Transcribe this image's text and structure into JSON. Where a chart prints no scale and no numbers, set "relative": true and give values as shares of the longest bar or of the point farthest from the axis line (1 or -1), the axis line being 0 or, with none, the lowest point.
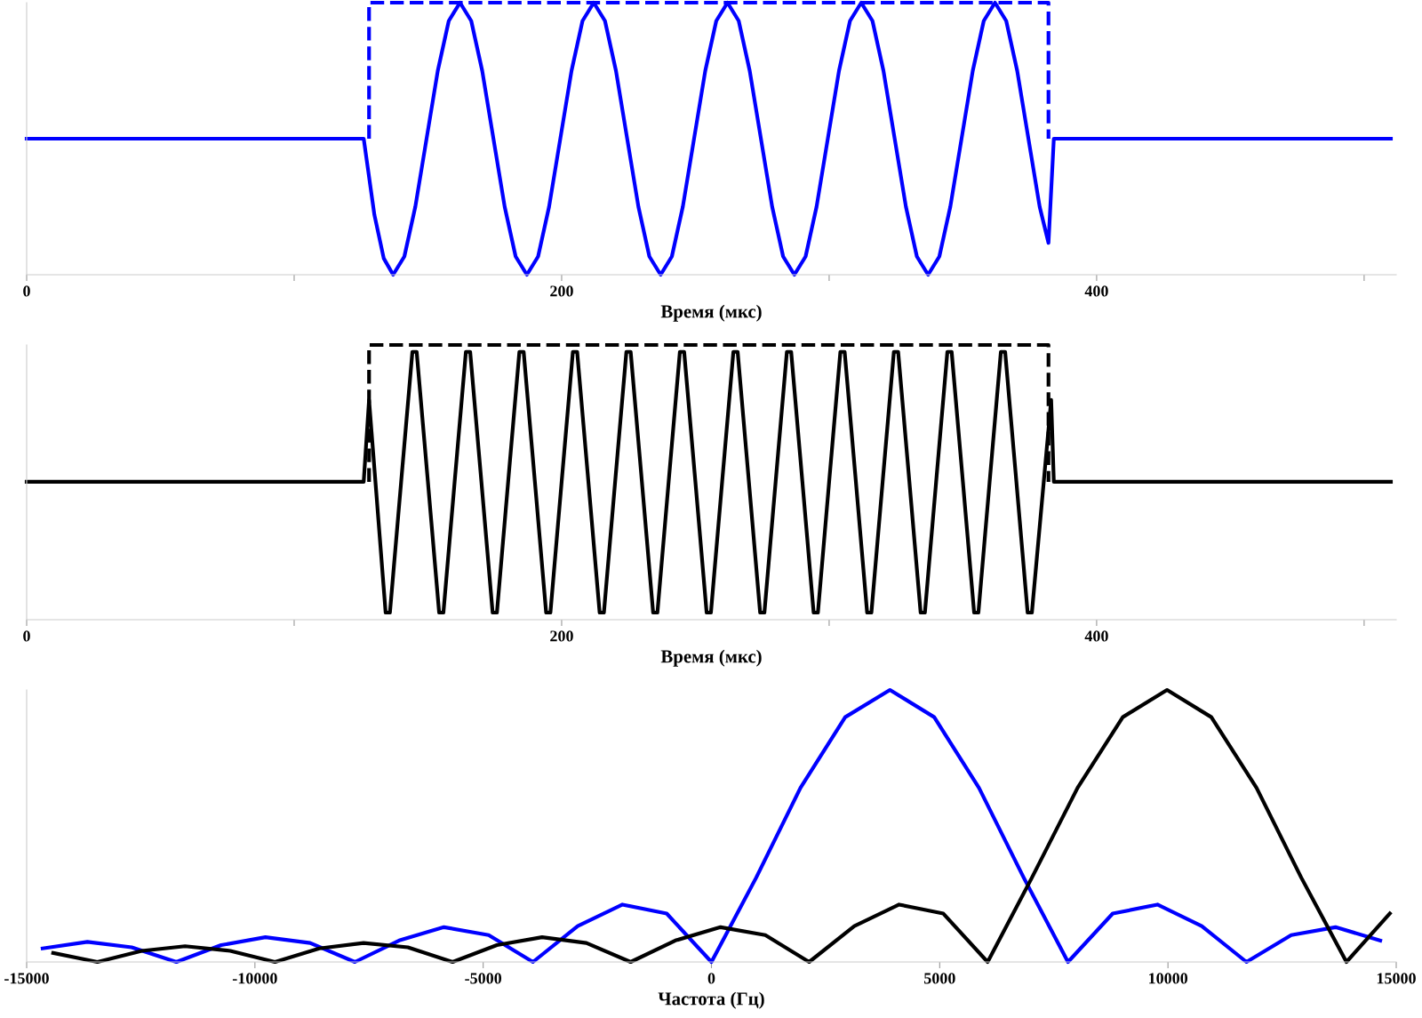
{
  "chart_data": [
    {
      "type": "line",
      "relative": true,
      "xlabel": "Время (мкс)",
      "xlim": [
        0,
        512
      ],
      "xticks": [
        0,
        {
          "value": 100,
          "label": null
        },
        200,
        {
          "value": 300,
          "label": null
        },
        400,
        {
          "value": 500,
          "label": null
        }
      ],
      "grid": false,
      "legend": false,
      "series": [
        {
          "color": "#0000ff",
          "line_style": "solid",
          "x": [
            0,
            126,
            130,
            133.5,
            137,
            141.2,
            145.3,
            149.5,
            153.7,
            157.8,
            162,
            166.2,
            170.3,
            174.5,
            178.7,
            182.8,
            187,
            191.2,
            195.3,
            199.5,
            203.7,
            207.8,
            212,
            216.2,
            220.3,
            224.5,
            228.7,
            232.8,
            237,
            241.2,
            245.3,
            249.5,
            253.7,
            257.8,
            262,
            266.2,
            270.3,
            274.5,
            278.7,
            282.8,
            287,
            291.2,
            295.3,
            299.5,
            303.7,
            307.8,
            312,
            316.2,
            320.3,
            324.5,
            328.7,
            332.8,
            337,
            341.2,
            345.3,
            349.5,
            353.7,
            357.8,
            362,
            366.2,
            370.3,
            374.5,
            378.7,
            382,
            384,
            510
          ],
          "values": [
            0.5,
            0.5,
            0.22,
            0.06,
            0,
            0.067,
            0.25,
            0.5,
            0.75,
            0.933,
            1,
            0.933,
            0.75,
            0.5,
            0.25,
            0.067,
            0,
            0.067,
            0.25,
            0.5,
            0.75,
            0.933,
            1,
            0.933,
            0.75,
            0.5,
            0.25,
            0.067,
            0,
            0.067,
            0.25,
            0.5,
            0.75,
            0.933,
            1,
            0.933,
            0.75,
            0.5,
            0.25,
            0.067,
            0,
            0.067,
            0.25,
            0.5,
            0.75,
            0.933,
            1,
            0.933,
            0.75,
            0.5,
            0.25,
            0.067,
            0,
            0.067,
            0.25,
            0.5,
            0.75,
            0.933,
            1,
            0.933,
            0.75,
            0.5,
            0.25,
            0.117,
            0.5,
            0.5
          ]
        },
        {
          "color": "#0000ff",
          "line_style": "dashed",
          "x": [
            128,
            128,
            382,
            382
          ],
          "values": [
            0.5,
            1,
            1,
            0.5
          ]
        }
      ]
    },
    {
      "type": "line",
      "relative": true,
      "xlabel": "Время (мкс)",
      "xlim": [
        0,
        512
      ],
      "xticks": [
        0,
        {
          "value": 100,
          "label": null
        },
        200,
        {
          "value": 300,
          "label": null
        },
        400,
        {
          "value": 500,
          "label": null
        }
      ],
      "grid": false,
      "legend": false,
      "series": [
        {
          "color": "#000000",
          "line_style": "solid",
          "x": [
            0,
            126,
            128,
            134.2,
            135.8,
            140,
            144.2,
            145.8,
            150,
            154.2,
            155.8,
            160,
            164.2,
            165.8,
            170,
            174.2,
            175.8,
            180,
            184.2,
            185.8,
            190,
            194.2,
            195.8,
            200,
            204.2,
            205.8,
            210,
            214.2,
            215.8,
            220,
            224.2,
            225.8,
            230,
            234.2,
            235.8,
            240,
            244.2,
            245.8,
            250,
            254.2,
            255.8,
            260,
            264.2,
            265.8,
            270,
            274.2,
            275.8,
            280,
            284.2,
            285.8,
            290,
            294.2,
            295.8,
            300,
            304.2,
            305.8,
            310,
            314.2,
            315.8,
            320,
            324.2,
            325.8,
            330,
            334.2,
            335.8,
            340,
            344.2,
            345.8,
            350,
            354.2,
            355.8,
            360,
            364.2,
            365.8,
            370,
            374.2,
            375.8,
            383,
            384,
            510
          ],
          "values": [
            0.502,
            0.502,
            0.8,
            0.026,
            0.026,
            0.502,
            0.975,
            0.975,
            0.502,
            0.026,
            0.026,
            0.502,
            0.975,
            0.975,
            0.502,
            0.026,
            0.026,
            0.502,
            0.975,
            0.975,
            0.502,
            0.026,
            0.026,
            0.502,
            0.975,
            0.975,
            0.502,
            0.026,
            0.026,
            0.502,
            0.975,
            0.975,
            0.502,
            0.026,
            0.026,
            0.502,
            0.975,
            0.975,
            0.502,
            0.026,
            0.026,
            0.502,
            0.975,
            0.975,
            0.502,
            0.026,
            0.026,
            0.502,
            0.975,
            0.975,
            0.502,
            0.026,
            0.026,
            0.502,
            0.975,
            0.975,
            0.502,
            0.026,
            0.026,
            0.502,
            0.975,
            0.975,
            0.502,
            0.026,
            0.026,
            0.502,
            0.975,
            0.975,
            0.502,
            0.026,
            0.026,
            0.502,
            0.975,
            0.975,
            0.502,
            0.026,
            0.026,
            0.8,
            0.502,
            0.502
          ]
        },
        {
          "color": "#000000",
          "line_style": "dashed",
          "x": [
            128,
            128,
            382,
            382
          ],
          "values": [
            0.502,
            1,
            1,
            0.502
          ]
        }
      ]
    },
    {
      "type": "line",
      "relative": true,
      "xlabel": "Частота (Гц)",
      "xlim": [
        -15000,
        15000
      ],
      "xticks": [
        -15000,
        -10000,
        -5000,
        0,
        5000,
        10000,
        15000
      ],
      "grid": false,
      "legend": false,
      "series": [
        {
          "color": "#0000ff",
          "line_style": "solid",
          "x": [
            -14650,
            -13670,
            -12700,
            -11720,
            -10740,
            -9770,
            -8790,
            -7810,
            -6840,
            -5860,
            -4880,
            -3910,
            -2930,
            -1950,
            -980,
            0,
            980,
            1950,
            2930,
            3910,
            4880,
            5860,
            6840,
            7810,
            8790,
            9770,
            10740,
            11720,
            12700,
            13670,
            14650
          ],
          "values": [
            0.05,
            0.074,
            0.054,
            0,
            0.062,
            0.091,
            0.07,
            0,
            0.079,
            0.128,
            0.099,
            0,
            0.132,
            0.211,
            0.178,
            0,
            0.31,
            0.64,
            0.9,
            1,
            0.9,
            0.64,
            0.31,
            0,
            0.178,
            0.211,
            0.132,
            0,
            0.099,
            0.128,
            0.079
          ]
        },
        {
          "color": "#000000",
          "line_style": "solid",
          "x": [
            -14420,
            -13450,
            -12480,
            -11530,
            -10540,
            -9560,
            -8590,
            -7620,
            -6650,
            -5670,
            -4700,
            -3710,
            -2740,
            -1770,
            -790,
            200,
            1180,
            2140,
            3130,
            4110,
            5080,
            6050,
            7020,
            8020,
            9010,
            9980,
            10950,
            11940,
            12920,
            13910,
            14860
          ],
          "values": [
            0.033,
            0,
            0.041,
            0.058,
            0.041,
            0,
            0.05,
            0.07,
            0.054,
            0,
            0.062,
            0.091,
            0.07,
            0,
            0.079,
            0.128,
            0.099,
            0,
            0.132,
            0.211,
            0.178,
            0,
            0.31,
            0.64,
            0.9,
            1,
            0.9,
            0.64,
            0.31,
            0,
            0.178
          ]
        }
      ]
    }
  ]
}
